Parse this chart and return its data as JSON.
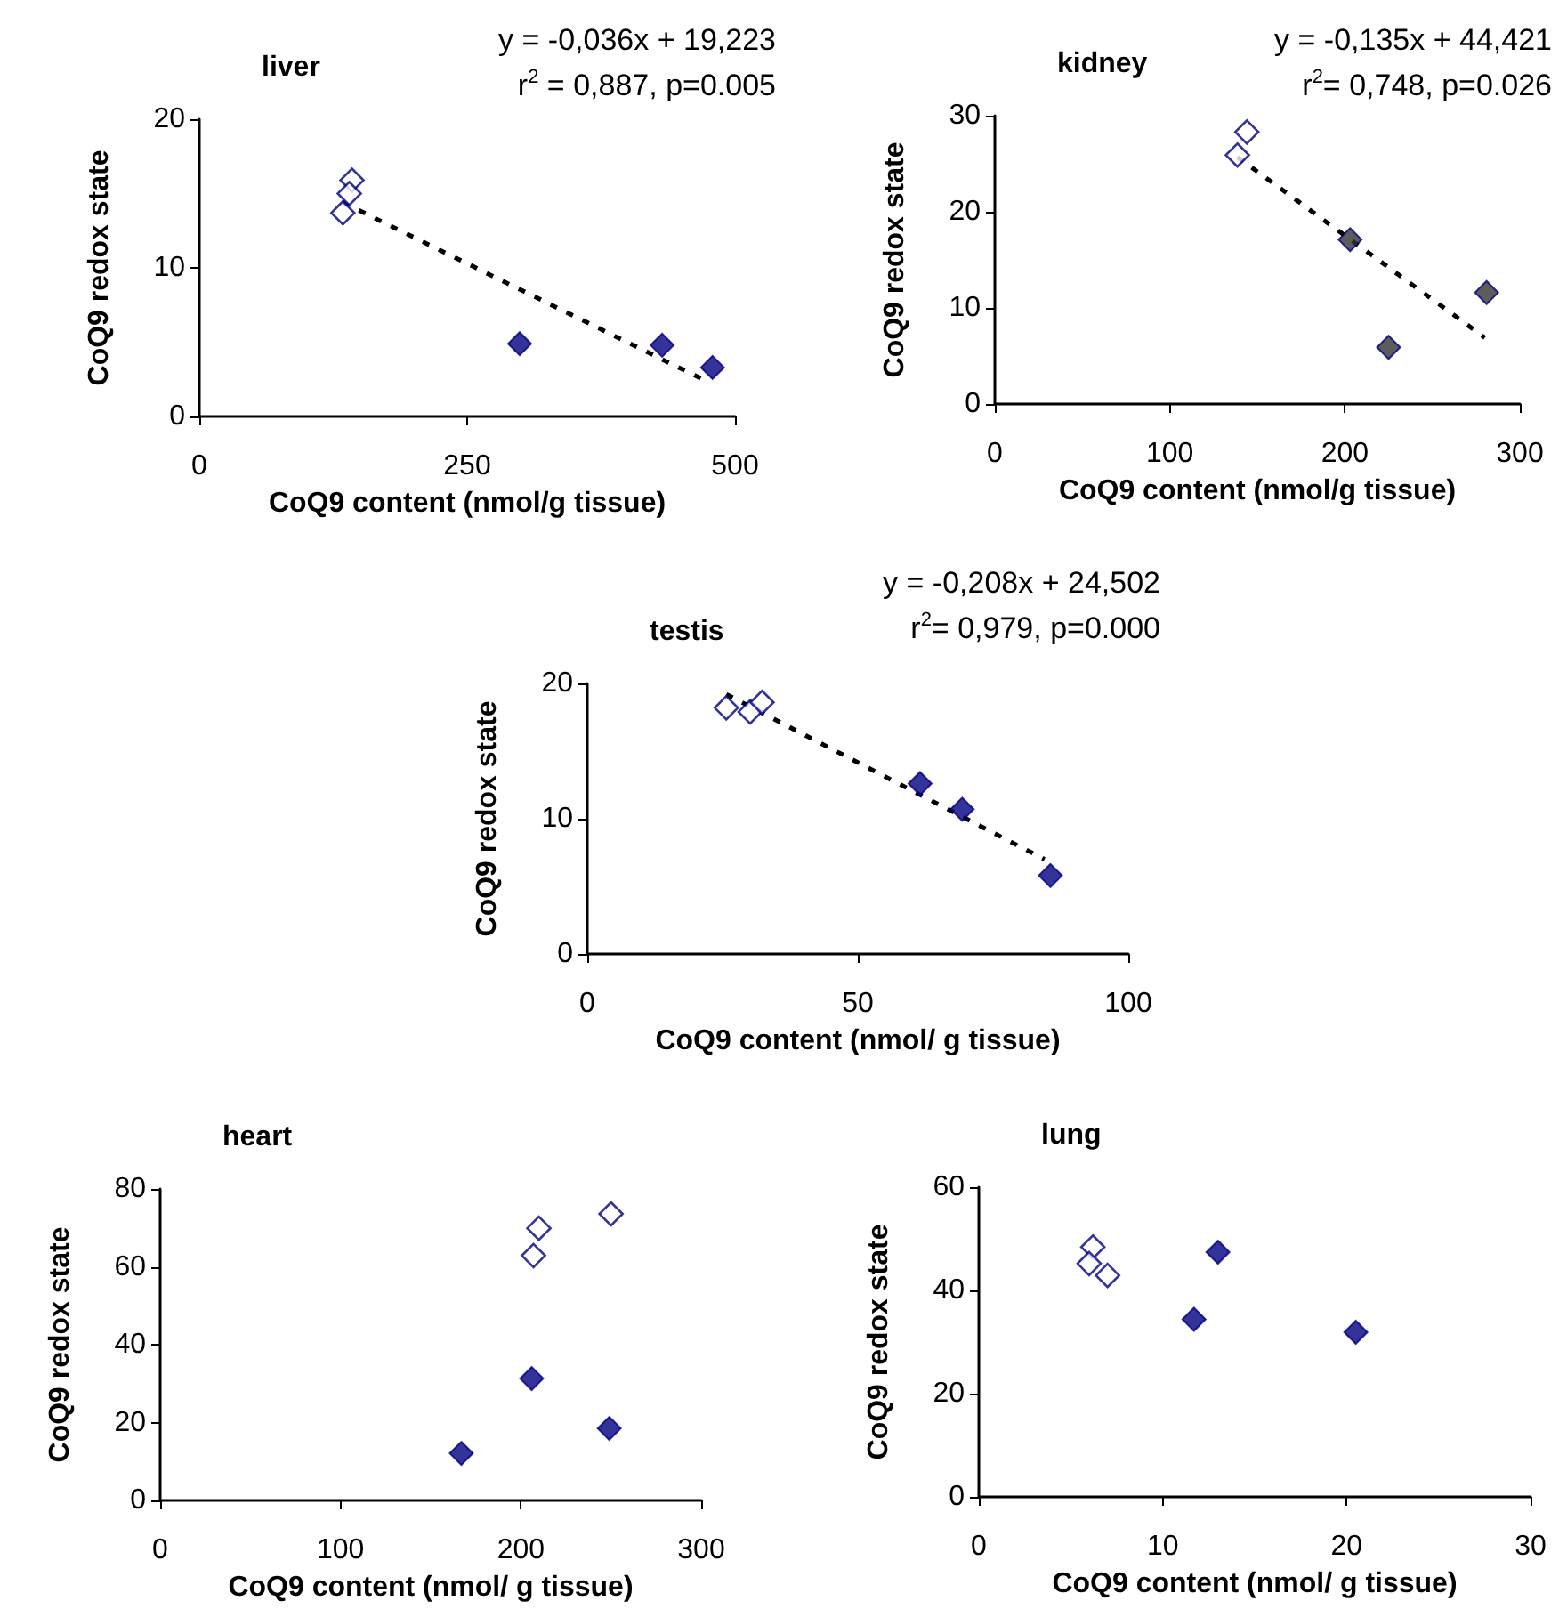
{
  "chart_data": [
    {
      "type": "scatter",
      "title": "liver",
      "xlabel": "CoQ9 content (nmol/g tissue)",
      "ylabel": "CoQ9 redox state",
      "xlim": [
        0,
        500
      ],
      "xticks": [
        0,
        250,
        500
      ],
      "ylim": [
        0,
        20
      ],
      "yticks": [
        0,
        10,
        20
      ],
      "marker": "diamond",
      "annotations": [
        "y = -0,036x + 19,223",
        "r$^{2}$ = 0,887, p=0.005"
      ],
      "series": [
        {
          "color": "#000080",
          "x": [
            142.5,
            140,
            134
          ],
          "values": [
            15.9,
            15.0,
            13.7
          ]
        },
        {
          "color": "#000080",
          "x": [
            299,
            432,
            479
          ],
          "values": [
            4.9,
            4.8,
            3.3
          ]
        },
        {
          "type": "line",
          "line_style": "dashed",
          "marker": "none",
          "color": "#000000",
          "x": [
            134,
            470
          ],
          "values": [
            14.4,
            2.5
          ]
        }
      ]
    },
    {
      "type": "scatter",
      "title": "kidney",
      "xlabel": "CoQ9 content (nmol/g tissue)",
      "ylabel": "CoQ9 redox state",
      "xlim": [
        0,
        300
      ],
      "xticks": [
        0,
        100,
        200,
        300
      ],
      "ylim": [
        0,
        30
      ],
      "yticks": [
        0,
        10,
        20,
        30
      ],
      "marker": "diamond",
      "annotations": [
        "y = -0,135x + 44,421",
        "r$^{2}$= 0,748, p=0.026"
      ],
      "series": [
        {
          "color": "#000080",
          "x": [
            144,
            138.6
          ],
          "values": [
            28.3,
            25.9
          ]
        },
        {
          "color": "#333333",
          "x": [
            203,
            225,
            281
          ],
          "values": [
            17.1,
            5.9,
            11.6
          ]
        },
        {
          "type": "line",
          "line_style": "dashed",
          "marker": "none",
          "color": "#000000",
          "x": [
            138.6,
            280
          ],
          "values": [
            25.7,
            6.9
          ]
        }
      ]
    },
    {
      "type": "scatter",
      "title": "testis",
      "xlabel": "CoQ9 content (nmol/ g tissue)",
      "ylabel": "CoQ9 redox state",
      "xlim": [
        0,
        100
      ],
      "xticks": [
        0,
        50,
        100
      ],
      "ylim": [
        0,
        20
      ],
      "yticks": [
        0,
        10,
        20
      ],
      "marker": "diamond",
      "annotations": [
        "y = -0,208x + 24,502",
        "r$^{2}$= 0,979, p=0.000"
      ],
      "series": [
        {
          "color": "#000080",
          "x": [
            25.7,
            30.1,
            32.3
          ],
          "values": [
            18.2,
            17.9,
            18.6
          ]
        },
        {
          "color": "#000080",
          "x": [
            61.5,
            69.3,
            85.6
          ],
          "values": [
            12.6,
            10.7,
            5.8
          ]
        },
        {
          "type": "line",
          "line_style": "dashed",
          "marker": "none",
          "color": "#000000",
          "x": [
            25.7,
            84.5
          ],
          "values": [
            19.2,
            7.0
          ]
        }
      ]
    },
    {
      "type": "scatter",
      "title": "heart",
      "xlabel": "CoQ9 content (nmol/ g tissue)",
      "ylabel": "CoQ9 redox state",
      "xlim": [
        0,
        300
      ],
      "xticks": [
        0,
        100,
        200,
        300
      ],
      "ylim": [
        0,
        80
      ],
      "yticks": [
        0,
        20,
        40,
        60,
        80
      ],
      "marker": "diamond",
      "series": [
        {
          "color": "#000080",
          "x": [
            210,
            207,
            250
          ],
          "values": [
            69.9,
            62.9,
            73.6
          ]
        },
        {
          "color": "#000080",
          "x": [
            167,
            206,
            249
          ],
          "values": [
            12.1,
            31.3,
            18.5
          ]
        }
      ]
    },
    {
      "type": "scatter",
      "title": "lung",
      "xlabel": "CoQ9 content (nmol/ g tissue)",
      "ylabel": "CoQ9 redox state",
      "xlim": [
        0,
        30
      ],
      "xticks": [
        0,
        10,
        20,
        30
      ],
      "ylim": [
        0,
        60
      ],
      "yticks": [
        0,
        20,
        40,
        60
      ],
      "marker": "diamond",
      "series": [
        {
          "color": "#000080",
          "x": [
            6.2,
            6.0,
            7.0
          ],
          "values": [
            48.4,
            45.2,
            42.9
          ]
        },
        {
          "color": "#000080",
          "x": [
            11.7,
            13.0,
            20.5
          ],
          "values": [
            34.4,
            47.4,
            31.9
          ]
        }
      ]
    }
  ]
}
